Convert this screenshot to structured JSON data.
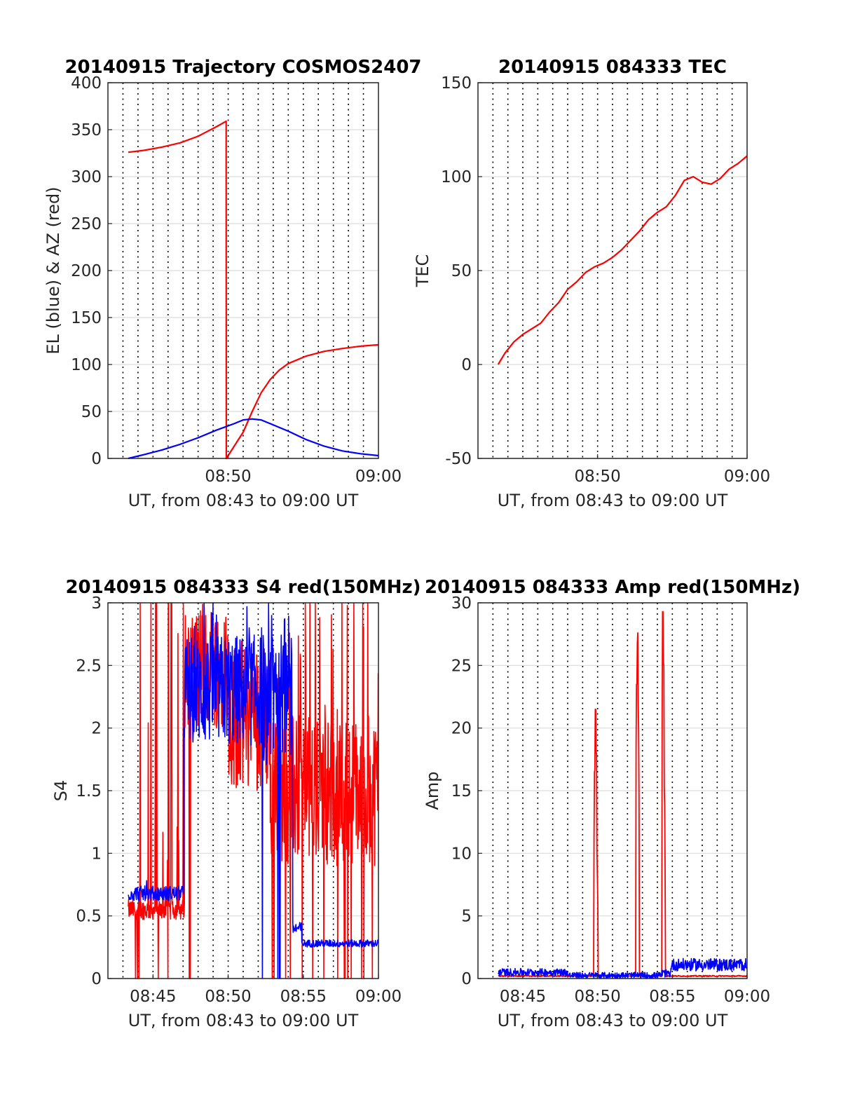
{
  "chart_data": [
    {
      "id": "trajectory",
      "type": "line",
      "title": "20140915 Trajectory COSMOS2407",
      "xlabel": "UT, from 08:43 to 09:00 UT",
      "ylabel": "EL (blue) & AZ (red)",
      "xlim": [
        8.7,
        9.0
      ],
      "ylim": [
        0,
        400
      ],
      "yticks": [
        0,
        50,
        100,
        150,
        200,
        250,
        300,
        350,
        400
      ],
      "xticks": [
        {
          "value": 8.8333,
          "label": "08:50"
        },
        {
          "value": 9.0,
          "label": "09:00"
        }
      ],
      "grid": true,
      "series": [
        {
          "color": "#ff0000",
          "points": [
            [
              8.7225,
              326
            ],
            [
              8.74,
              328
            ],
            [
              8.76,
              331.5
            ],
            [
              8.78,
              336
            ],
            [
              8.8,
              343
            ],
            [
              8.81,
              348
            ],
            [
              8.82,
              353
            ],
            [
              8.8311,
              359
            ],
            [
              8.8313,
              0
            ],
            [
              8.84,
              13
            ],
            [
              8.85,
              28
            ],
            [
              8.86,
              50
            ],
            [
              8.87,
              70
            ],
            [
              8.88,
              84
            ],
            [
              8.89,
              94
            ],
            [
              8.9,
              101
            ],
            [
              8.92,
              109
            ],
            [
              8.94,
              114
            ],
            [
              8.96,
              117
            ],
            [
              8.98,
              119.5
            ],
            [
              9.0,
              121
            ]
          ]
        },
        {
          "color": "#0000ff",
          "points": [
            [
              8.7225,
              0
            ],
            [
              8.74,
              4
            ],
            [
              8.76,
              9
            ],
            [
              8.78,
              15
            ],
            [
              8.8,
              22
            ],
            [
              8.82,
              30
            ],
            [
              8.84,
              37
            ],
            [
              8.85,
              41
            ],
            [
              8.86,
              42
            ],
            [
              8.87,
              41
            ],
            [
              8.88,
              37
            ],
            [
              8.9,
              29
            ],
            [
              8.92,
              20
            ],
            [
              8.94,
              13
            ],
            [
              8.96,
              8
            ],
            [
              8.98,
              5
            ],
            [
              9.0,
              3
            ]
          ]
        }
      ]
    },
    {
      "id": "tec",
      "type": "line",
      "title": "20140915 084333 TEC",
      "xlabel": "UT, from 08:43 to 09:00 UT",
      "ylabel": "TEC",
      "xlim": [
        8.7,
        9.0
      ],
      "ylim": [
        -50,
        150
      ],
      "yticks": [
        -50,
        0,
        50,
        100,
        150
      ],
      "xticks": [
        {
          "value": 8.8333,
          "label": "08:50"
        },
        {
          "value": 9.0,
          "label": "09:00"
        }
      ],
      "grid": true,
      "series": [
        {
          "color": "#ff0000",
          "points": [
            [
              8.7225,
              0
            ],
            [
              8.73,
              6
            ],
            [
              8.74,
              12
            ],
            [
              8.75,
              16
            ],
            [
              8.76,
              19
            ],
            [
              8.77,
              22
            ],
            [
              8.78,
              28
            ],
            [
              8.79,
              33
            ],
            [
              8.8,
              40
            ],
            [
              8.81,
              44
            ],
            [
              8.82,
              49
            ],
            [
              8.83,
              52
            ],
            [
              8.84,
              54
            ],
            [
              8.85,
              57
            ],
            [
              8.86,
              61
            ],
            [
              8.87,
              66
            ],
            [
              8.88,
              71
            ],
            [
              8.89,
              77
            ],
            [
              8.9,
              81
            ],
            [
              8.91,
              84
            ],
            [
              8.92,
              90
            ],
            [
              8.93,
              98
            ],
            [
              8.94,
              100
            ],
            [
              8.95,
              97
            ],
            [
              8.96,
              96
            ],
            [
              8.97,
              99
            ],
            [
              8.98,
              104
            ],
            [
              8.99,
              107
            ],
            [
              9.0,
              111
            ]
          ]
        }
      ]
    },
    {
      "id": "s4",
      "type": "line",
      "title": "20140915 084333 S4 red(150MHz)",
      "xlabel": "UT, from 08:43 to 09:00 UT",
      "ylabel": "S4",
      "xlim": [
        8.7,
        9.0
      ],
      "ylim": [
        0,
        3
      ],
      "yticks": [
        0,
        0.5,
        1,
        1.5,
        2,
        2.5,
        3
      ],
      "xticks": [
        {
          "value": 8.75,
          "label": "08:45"
        },
        {
          "value": 8.8333,
          "label": "08:50"
        },
        {
          "value": 8.9167,
          "label": "08:55"
        },
        {
          "value": 9.0,
          "label": "09:00"
        }
      ],
      "grid": true,
      "series": [
        {
          "color": "#ff0000",
          "segments": [
            {
              "x0": 8.7225,
              "x1": 8.785,
              "base": 0.55,
              "noise": 0.08,
              "spikeRate": 0.75,
              "spikeMax": 3,
              "dropRate": 0.25
            },
            {
              "x0": 8.785,
              "x1": 8.8333,
              "base": 2.5,
              "noise": 0.5,
              "spikeRate": 0.3,
              "spikeMax": 3,
              "dropRate": 0.05
            },
            {
              "x0": 8.8333,
              "x1": 8.88,
              "base": 2.1,
              "noise": 0.6,
              "spikeRate": 0.25,
              "spikeMax": 3,
              "dropRate": 0.05
            },
            {
              "x0": 8.88,
              "x1": 9.0,
              "base": 1.5,
              "noise": 0.6,
              "spikeRate": 0.6,
              "spikeMax": 3,
              "dropRate": 0.35
            }
          ]
        },
        {
          "color": "#0000ff",
          "segments": [
            {
              "x0": 8.7225,
              "x1": 8.784,
              "base": 0.68,
              "noise": 0.06,
              "spikeRate": 0.01,
              "spikeMax": 0.9,
              "dropRate": 0.0
            },
            {
              "x0": 8.784,
              "x1": 8.87,
              "base": 2.3,
              "noise": 0.45,
              "spikeRate": 0.3,
              "spikeMax": 3,
              "dropRate": 0.0
            },
            {
              "x0": 8.87,
              "x1": 8.905,
              "base": 2.3,
              "noise": 0.6,
              "spikeRate": 0.3,
              "spikeMax": 3,
              "dropRate": 0.12
            },
            {
              "x0": 8.905,
              "x1": 8.915,
              "base": 0.4,
              "noise": 0.05,
              "spikeRate": 0.0,
              "spikeMax": 0.5,
              "dropRate": 0.0
            },
            {
              "x0": 8.915,
              "x1": 9.0,
              "base": 0.28,
              "noise": 0.03,
              "spikeRate": 0.01,
              "spikeMax": 0.4,
              "dropRate": 0.0
            }
          ]
        }
      ]
    },
    {
      "id": "amp",
      "type": "line",
      "title": "20140915 084333 Amp red(150MHz)",
      "xlabel": "UT, from 08:43 to 09:00 UT",
      "ylabel": "Amp",
      "xlim": [
        8.7,
        9.0
      ],
      "ylim": [
        0,
        30
      ],
      "yticks": [
        0,
        5,
        10,
        15,
        20,
        25,
        30
      ],
      "xticks": [
        {
          "value": 8.75,
          "label": "08:45"
        },
        {
          "value": 8.8333,
          "label": "08:50"
        },
        {
          "value": 8.9167,
          "label": "08:55"
        },
        {
          "value": 9.0,
          "label": "09:00"
        }
      ],
      "grid": true,
      "series": [
        {
          "color": "#ff0000",
          "baseline": 0.15,
          "noise": 0.1,
          "spikes": [
            [
              8.83,
              16.5
            ],
            [
              8.831,
              21.5
            ],
            [
              8.832,
              18
            ],
            [
              8.833,
              8
            ],
            [
              8.877,
              23.5
            ],
            [
              8.878,
              27.6
            ],
            [
              8.879,
              20
            ],
            [
              8.906,
              29.3
            ],
            [
              8.907,
              25
            ],
            [
              8.908,
              13.8
            ]
          ],
          "xStart": 8.7225,
          "xEnd": 9.0
        },
        {
          "color": "#0000ff",
          "segments": [
            {
              "x0": 8.7225,
              "x1": 8.8,
              "base": 0.5,
              "noise": 0.3
            },
            {
              "x0": 8.8,
              "x1": 8.905,
              "base": 0.25,
              "noise": 0.25
            },
            {
              "x0": 8.905,
              "x1": 8.915,
              "base": 0.4,
              "noise": 0.3
            },
            {
              "x0": 8.915,
              "x1": 9.0,
              "base": 1.1,
              "noise": 0.5
            }
          ]
        }
      ]
    }
  ]
}
